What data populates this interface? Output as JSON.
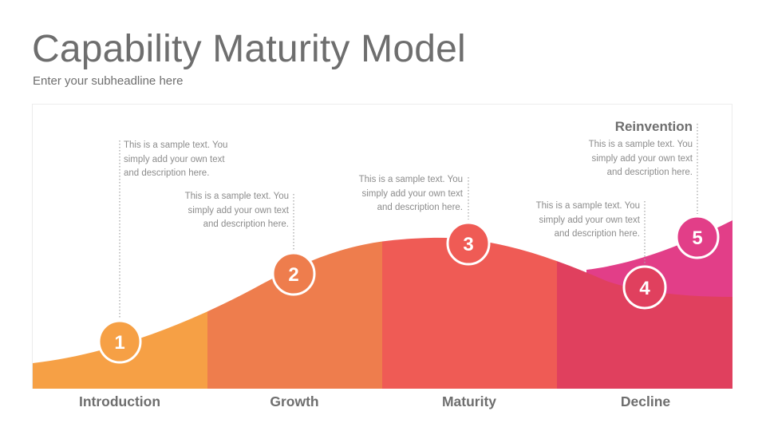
{
  "header": {
    "title": "Capability Maturity Model",
    "subtitle": "Enter your subheadline here"
  },
  "stages": [
    {
      "number": "1",
      "label": "Introduction",
      "color": "#f6a045",
      "description": [
        "This is a sample text. You",
        "simply add your own text",
        "and description here."
      ]
    },
    {
      "number": "2",
      "label": "Growth",
      "color": "#ee7d4d",
      "description": [
        "This is a sample text. You",
        "simply add your own text",
        "and description here."
      ]
    },
    {
      "number": "3",
      "label": "Maturity",
      "color": "#ef5b55",
      "description": [
        "This is a sample text. You",
        "simply add your own text",
        "and description here."
      ]
    },
    {
      "number": "4",
      "label": "Decline",
      "color": "#e0405e",
      "description": [
        "This is a sample text. You",
        "simply add your own text",
        "and description here."
      ]
    },
    {
      "number": "5",
      "label": "Reinvention",
      "color": "#e23e88",
      "description": [
        "This is a sample text. You",
        "simply add your own text",
        "and description here."
      ]
    }
  ]
}
